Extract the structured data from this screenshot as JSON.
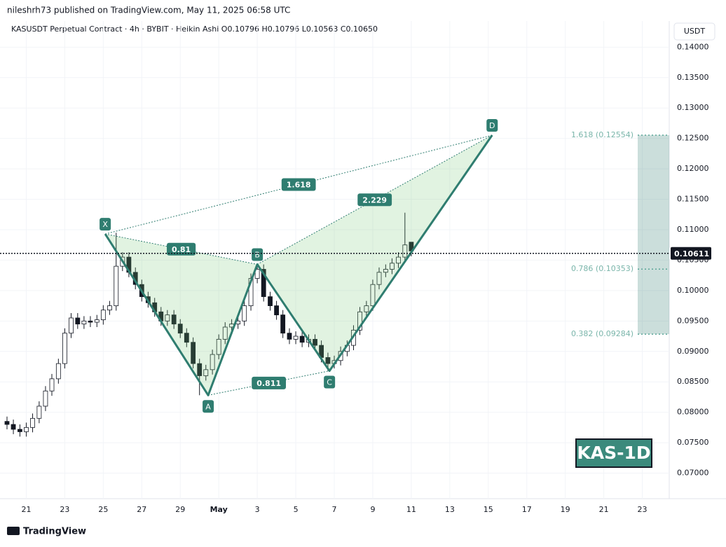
{
  "header": {
    "published": "nileshrh73 published on TradingView.com, May 11, 2025 06:58 UTC",
    "symbol_line": "KASUSDT Perpetual Contract · 4h · BYBIT · Heikin Ashi   O0.10796  H0.10796  L0.10563  C0.10650",
    "currency_button": "USDT"
  },
  "footer": {
    "brand": "TradingView"
  },
  "chart_data": {
    "type": "candlestick",
    "x": [
      0,
      0.33,
      0.67,
      1,
      1.33,
      1.67,
      2,
      2.33,
      2.67,
      3,
      3.33,
      3.67,
      4,
      4.33,
      4.67,
      5,
      5.33,
      5.67,
      6,
      6.33,
      6.67,
      7,
      7.33,
      7.67,
      8,
      8.33,
      8.67,
      9,
      9.33,
      9.67,
      10,
      10.33,
      10.67,
      11,
      11.33,
      11.67,
      12,
      12.33,
      12.67,
      13,
      13.33,
      13.67,
      14,
      14.33,
      14.67,
      15,
      15.33,
      15.67,
      16,
      16.33,
      16.67,
      17,
      17.33,
      17.67,
      18,
      18.33,
      18.67,
      19,
      19.33,
      19.67,
      20,
      20.33,
      20.67,
      21
    ],
    "open": [
      0.0785,
      0.078,
      0.0772,
      0.0768,
      0.0775,
      0.079,
      0.081,
      0.0835,
      0.0855,
      0.088,
      0.093,
      0.0955,
      0.0945,
      0.095,
      0.0948,
      0.0952,
      0.0968,
      0.0975,
      0.104,
      0.1055,
      0.103,
      0.101,
      0.099,
      0.098,
      0.0965,
      0.095,
      0.096,
      0.0945,
      0.093,
      0.0915,
      0.088,
      0.086,
      0.087,
      0.0895,
      0.092,
      0.094,
      0.0945,
      0.095,
      0.0975,
      0.102,
      0.1035,
      0.099,
      0.0975,
      0.096,
      0.093,
      0.092,
      0.0925,
      0.0915,
      0.092,
      0.091,
      0.089,
      0.088,
      0.0885,
      0.09,
      0.091,
      0.0935,
      0.0965,
      0.0975,
      0.101,
      0.103,
      0.1035,
      0.1045,
      0.1055,
      0.10796
    ],
    "high": [
      0.0793,
      0.0788,
      0.078,
      0.0783,
      0.0798,
      0.0818,
      0.0843,
      0.0863,
      0.0888,
      0.0938,
      0.0963,
      0.0963,
      0.0958,
      0.0958,
      0.096,
      0.0976,
      0.0983,
      0.1095,
      0.1063,
      0.1063,
      0.1038,
      0.1018,
      0.0998,
      0.0988,
      0.0973,
      0.0968,
      0.0968,
      0.0953,
      0.0938,
      0.0923,
      0.0888,
      0.0878,
      0.0903,
      0.0928,
      0.0948,
      0.0953,
      0.0958,
      0.0983,
      0.1028,
      0.1043,
      0.1043,
      0.0998,
      0.0983,
      0.0968,
      0.0938,
      0.0933,
      0.0933,
      0.0928,
      0.0928,
      0.0918,
      0.0898,
      0.0893,
      0.0908,
      0.0918,
      0.0943,
      0.0973,
      0.0983,
      0.1018,
      0.1038,
      0.1043,
      0.1053,
      0.1063,
      0.1128,
      0.10796
    ],
    "low": [
      0.0772,
      0.0764,
      0.076,
      0.076,
      0.0767,
      0.0782,
      0.0802,
      0.0827,
      0.0847,
      0.0872,
      0.0922,
      0.0937,
      0.0937,
      0.094,
      0.094,
      0.0944,
      0.096,
      0.0967,
      0.1032,
      0.1022,
      0.1002,
      0.0982,
      0.0972,
      0.0957,
      0.0942,
      0.0942,
      0.0937,
      0.0922,
      0.0907,
      0.0872,
      0.0828,
      0.0852,
      0.0862,
      0.0887,
      0.0912,
      0.0932,
      0.0937,
      0.0942,
      0.0967,
      0.1012,
      0.0982,
      0.0967,
      0.0952,
      0.0922,
      0.0912,
      0.0912,
      0.0907,
      0.0907,
      0.0902,
      0.0882,
      0.0868,
      0.0872,
      0.0877,
      0.0892,
      0.0902,
      0.0927,
      0.0957,
      0.0967,
      0.1002,
      0.1022,
      0.1027,
      0.1037,
      0.1047,
      0.10563
    ],
    "close": [
      0.078,
      0.0772,
      0.0768,
      0.0775,
      0.079,
      0.081,
      0.0835,
      0.0855,
      0.088,
      0.093,
      0.0955,
      0.0945,
      0.095,
      0.0948,
      0.0952,
      0.0968,
      0.0975,
      0.104,
      0.1055,
      0.103,
      0.101,
      0.099,
      0.098,
      0.0965,
      0.095,
      0.096,
      0.0945,
      0.093,
      0.0915,
      0.088,
      0.086,
      0.087,
      0.0895,
      0.092,
      0.094,
      0.0945,
      0.095,
      0.0975,
      0.102,
      0.1035,
      0.099,
      0.0975,
      0.096,
      0.093,
      0.092,
      0.0925,
      0.0915,
      0.092,
      0.091,
      0.089,
      0.088,
      0.0885,
      0.09,
      0.091,
      0.0935,
      0.0965,
      0.0975,
      0.101,
      0.103,
      0.1035,
      0.1045,
      0.1055,
      0.1075,
      0.1065
    ],
    "up_color": "#ffffff",
    "down_color": "#131722",
    "wick_color": "#131722",
    "xlim": [
      0,
      34.4
    ],
    "xticks": [
      {
        "value": 1,
        "label": "21"
      },
      {
        "value": 3,
        "label": "23"
      },
      {
        "value": 5,
        "label": "25"
      },
      {
        "value": 7,
        "label": "27"
      },
      {
        "value": 9,
        "label": "29"
      },
      {
        "value": 11,
        "label": "May"
      },
      {
        "value": 13,
        "label": "3"
      },
      {
        "value": 15,
        "label": "5"
      },
      {
        "value": 17,
        "label": "7"
      },
      {
        "value": 19,
        "label": "9"
      },
      {
        "value": 21,
        "label": "11"
      },
      {
        "value": 23,
        "label": "13"
      },
      {
        "value": 25,
        "label": "15"
      },
      {
        "value": 27,
        "label": "17"
      },
      {
        "value": 29,
        "label": "19"
      },
      {
        "value": 31,
        "label": "21"
      },
      {
        "value": 33,
        "label": "23"
      }
    ],
    "ylim": [
      0.0658,
      0.1443
    ],
    "yticks": [
      {
        "value": 0.07,
        "label": "0.07000"
      },
      {
        "value": 0.075,
        "label": "0.07500"
      },
      {
        "value": 0.08,
        "label": "0.08000"
      },
      {
        "value": 0.085,
        "label": "0.08500"
      },
      {
        "value": 0.09,
        "label": "0.09000"
      },
      {
        "value": 0.095,
        "label": "0.09500"
      },
      {
        "value": 0.1,
        "label": "0.10000"
      },
      {
        "value": 0.105,
        "label": "0.10500"
      },
      {
        "value": 0.11,
        "label": "0.11000"
      },
      {
        "value": 0.115,
        "label": "0.11500"
      },
      {
        "value": 0.12,
        "label": "0.12000"
      },
      {
        "value": 0.125,
        "label": "0.12500"
      },
      {
        "value": 0.13,
        "label": "0.13000"
      },
      {
        "value": 0.135,
        "label": "0.13500"
      },
      {
        "value": 0.14,
        "label": "0.14000"
      }
    ],
    "grid": true,
    "grid_color": "#f2f4f8",
    "last_price": 0.10611,
    "pattern": {
      "color": "#2f7d70",
      "fill": "rgba(120,200,120,0.22)",
      "points": [
        {
          "label": "X",
          "x": 5.1,
          "y": 0.1093
        },
        {
          "label": "A",
          "x": 10.45,
          "y": 0.0828
        },
        {
          "label": "B",
          "x": 13.0,
          "y": 0.1043
        },
        {
          "label": "C",
          "x": 16.75,
          "y": 0.0868
        },
        {
          "label": "D",
          "x": 25.2,
          "y": 0.12554
        }
      ],
      "ratios": [
        0.81,
        1.618,
        2.229,
        0.811
      ]
    },
    "levels": [
      {
        "label": "1.618 (0.12554)",
        "value": 0.12554
      },
      {
        "label": "0.786 (0.10353)",
        "value": 0.10353
      },
      {
        "label": "0.382 (0.09284)",
        "value": 0.09284
      }
    ],
    "badge": "KAS-1D"
  }
}
